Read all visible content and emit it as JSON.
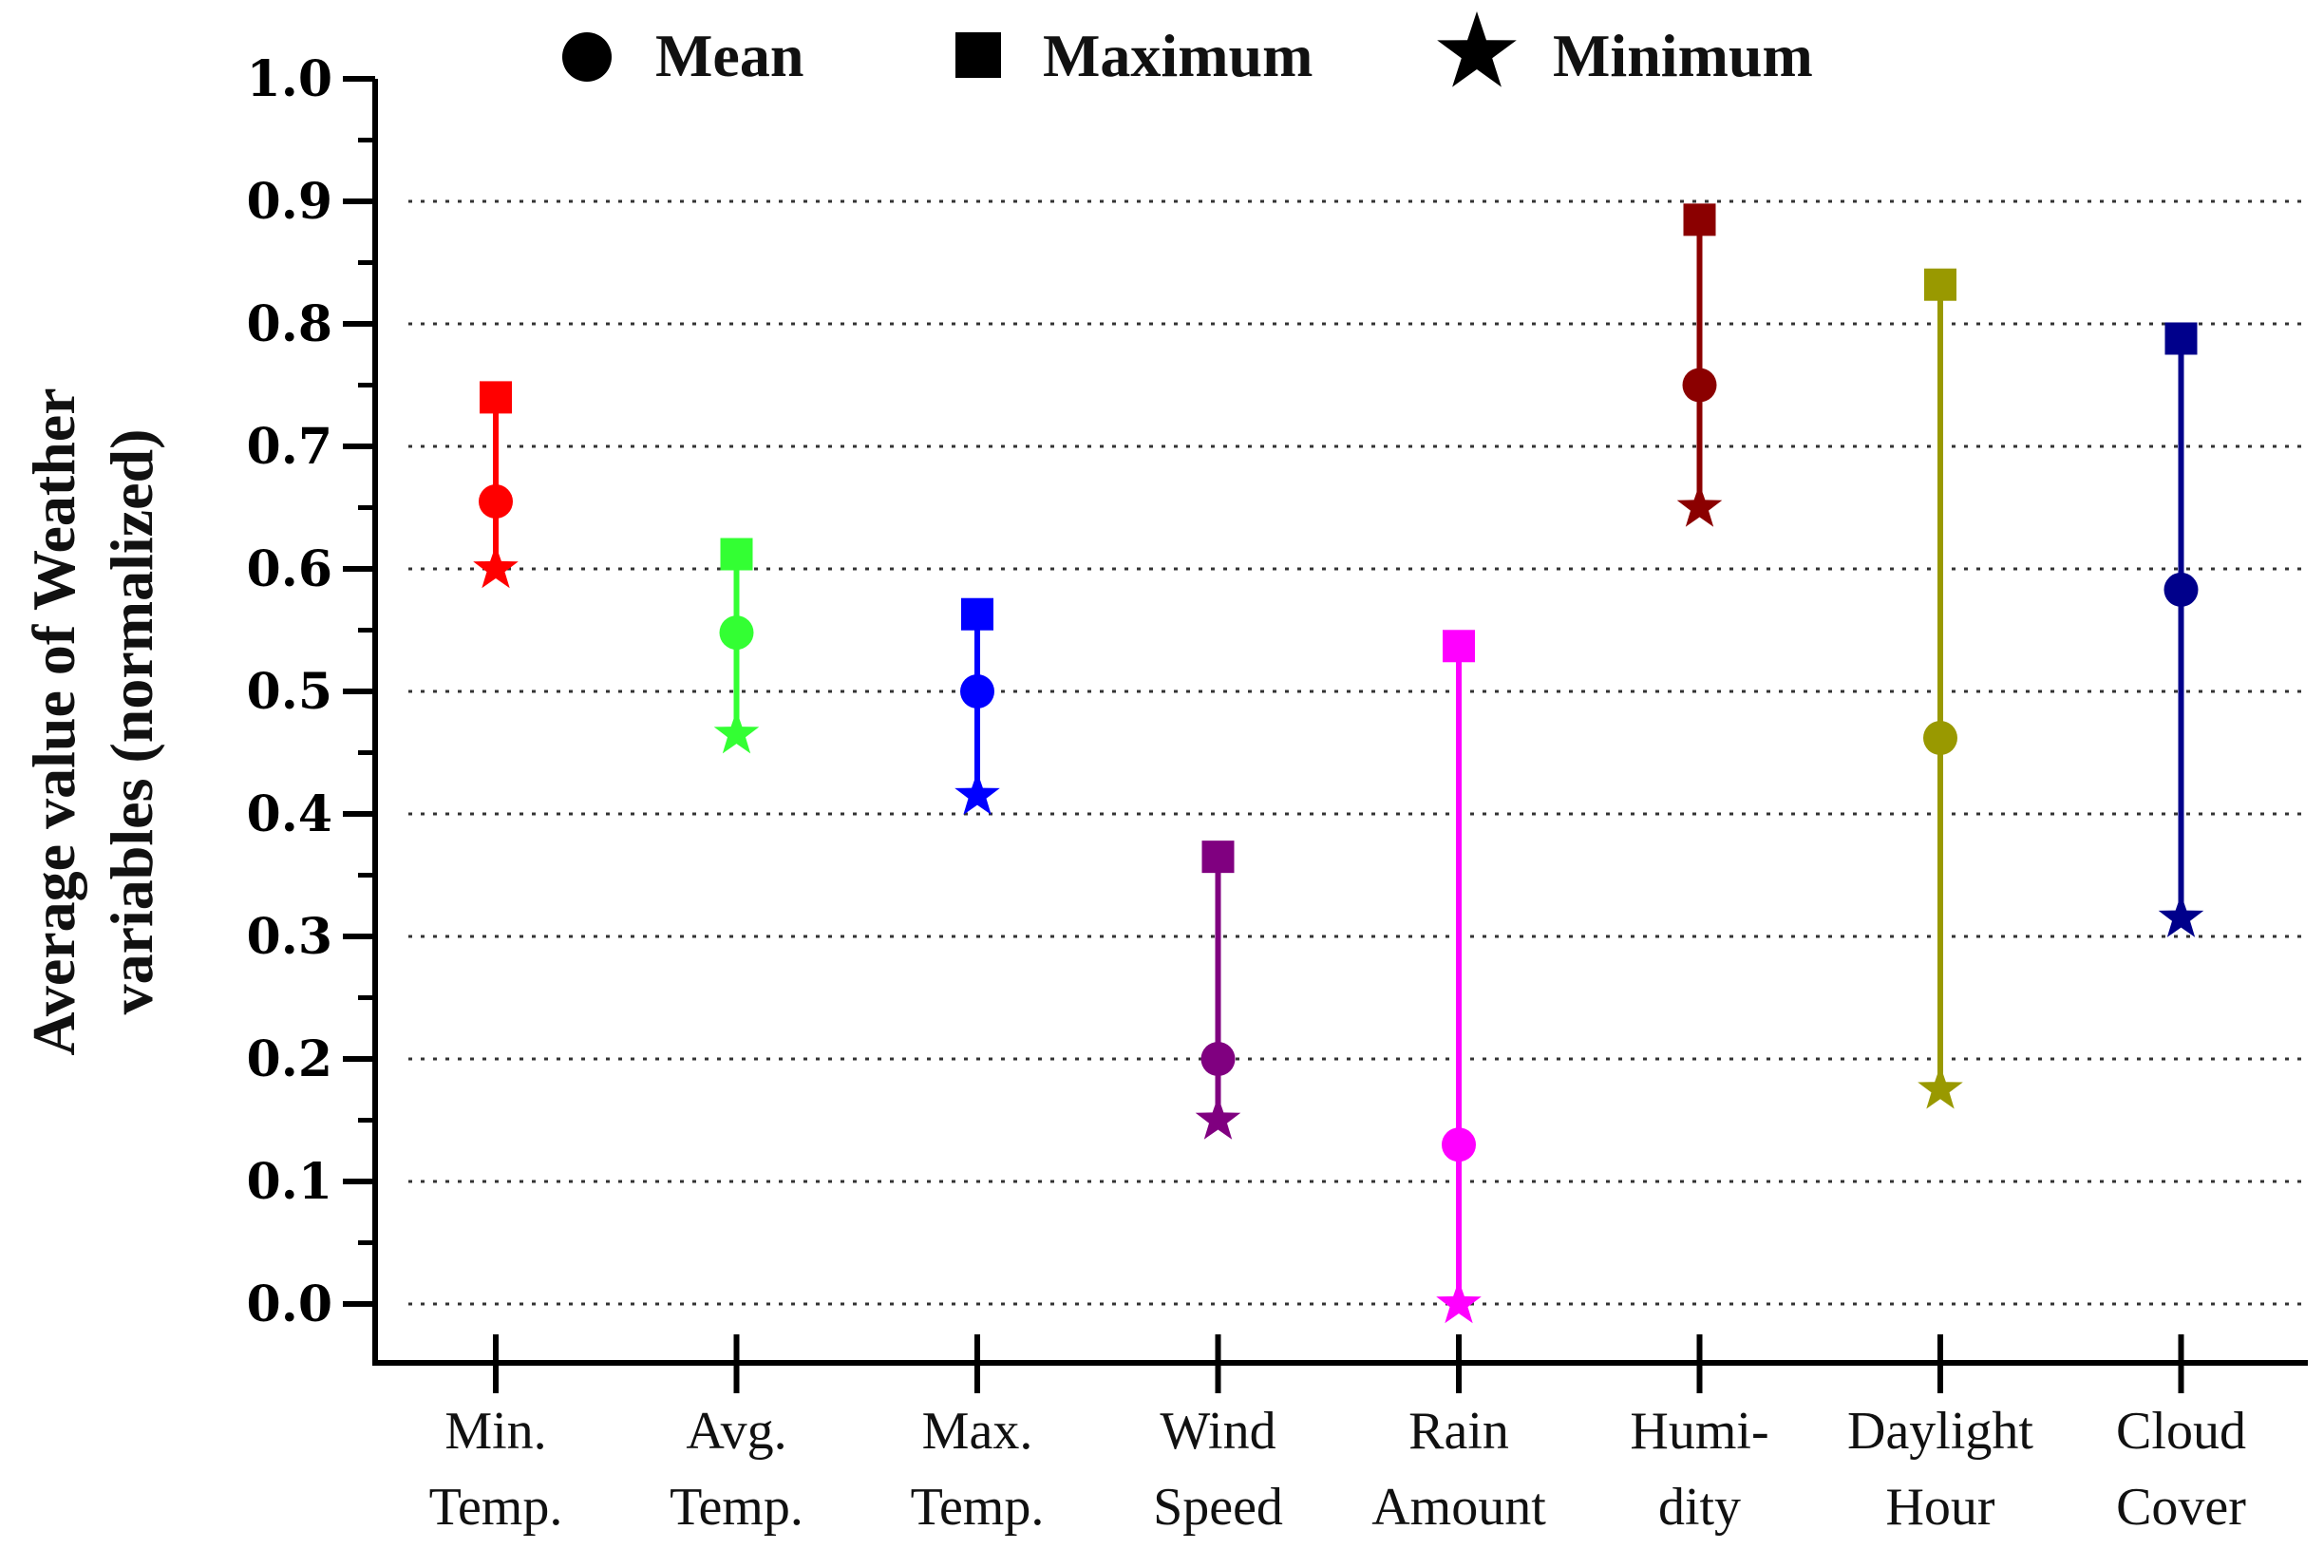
{
  "chart_data": {
    "type": "scatter",
    "title": "",
    "xlabel": "",
    "ylabel_lines": [
      "Average value of Weather",
      "variables (normalized)"
    ],
    "ylim": [
      0.0,
      1.0
    ],
    "yticks": [
      "0.0",
      "0.1",
      "0.2",
      "0.3",
      "0.4",
      "0.5",
      "0.6",
      "0.7",
      "0.8",
      "0.9",
      "1.0"
    ],
    "grid": "dotted horizontal",
    "legend": [
      {
        "marker": "circle",
        "label": "Mean"
      },
      {
        "marker": "square",
        "label": "Maximum"
      },
      {
        "marker": "star",
        "label": "Minimum"
      }
    ],
    "categories": [
      {
        "lines": [
          "Min.",
          "Temp."
        ],
        "mean": 0.655,
        "max": 0.74,
        "min": 0.6,
        "color": "#ff0000"
      },
      {
        "lines": [
          "Avg.",
          "Temp."
        ],
        "mean": 0.548,
        "max": 0.612,
        "min": 0.465,
        "color": "#33ff33"
      },
      {
        "lines": [
          "Max.",
          "Temp."
        ],
        "mean": 0.5,
        "max": 0.563,
        "min": 0.415,
        "color": "#0000ff"
      },
      {
        "lines": [
          "Wind",
          "Speed"
        ],
        "mean": 0.2,
        "max": 0.365,
        "min": 0.15,
        "color": "#800080"
      },
      {
        "lines": [
          "Rain",
          "Amount"
        ],
        "mean": 0.13,
        "max": 0.537,
        "min": 0.0,
        "color": "#ff00ff"
      },
      {
        "lines": [
          "Humi-",
          "dity"
        ],
        "mean": 0.75,
        "max": 0.885,
        "min": 0.65,
        "color": "#8b0000"
      },
      {
        "lines": [
          "Daylight",
          "Hour"
        ],
        "mean": 0.462,
        "max": 0.832,
        "min": 0.175,
        "color": "#999900"
      },
      {
        "lines": [
          "Cloud",
          "Cover"
        ],
        "mean": 0.583,
        "max": 0.788,
        "min": 0.315,
        "color": "#00008b"
      }
    ]
  }
}
